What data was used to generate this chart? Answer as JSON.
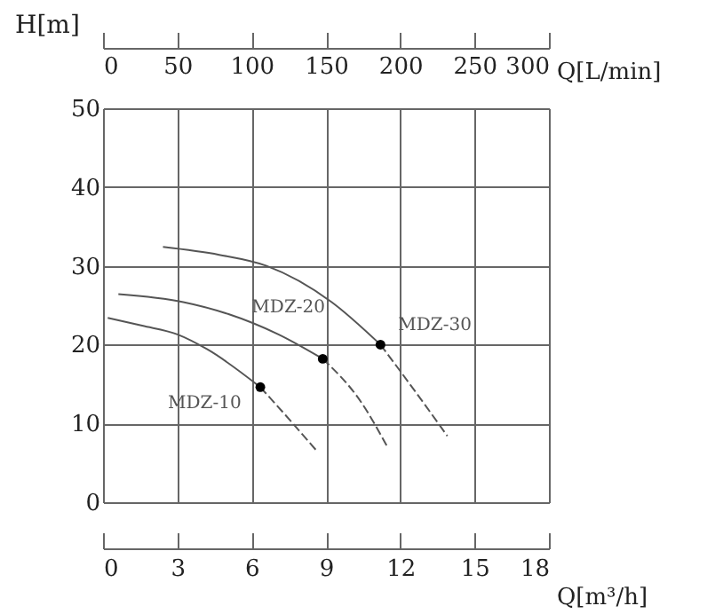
{
  "chart_data": {
    "type": "line",
    "xlabel": "Q[m³/h]",
    "ylabel": "H[m]",
    "x2label": "Q[L/min]",
    "xlim": [
      0,
      18
    ],
    "xticks": [
      0,
      3,
      6,
      9,
      12,
      15,
      18
    ],
    "x2lim": [
      0,
      300
    ],
    "x2ticks": [
      0,
      50,
      100,
      150,
      200,
      250,
      300
    ],
    "ylim": [
      0,
      50
    ],
    "yticks": [
      0,
      10,
      20,
      30,
      40,
      50
    ],
    "grid": true,
    "series": [
      {
        "name": "MDZ-10",
        "color": "#555555",
        "line_style": "solid",
        "x": [
          0.19,
          1.58,
          3.0,
          4.21,
          6.35
        ],
        "values": [
          23.4,
          22.4,
          21.3,
          19.4,
          14.6
        ]
      },
      {
        "color": "#555555",
        "line_style": "dashed",
        "x": [
          6.35,
          7.55,
          8.63
        ],
        "values": [
          14.6,
          10.4,
          6.5
        ]
      },
      {
        "name": "MDZ-20",
        "color": "#555555",
        "line_style": "solid",
        "x": [
          0.62,
          3.24,
          5.04,
          7.08,
          8.87
        ],
        "values": [
          26.4,
          25.4,
          23.9,
          21.3,
          18.2
        ]
      },
      {
        "color": "#555555",
        "line_style": "dashed",
        "x": [
          8.87,
          10.42,
          11.5
        ],
        "values": [
          18.2,
          12.7,
          6.9
        ]
      },
      {
        "name": "MDZ-30",
        "color": "#555555",
        "line_style": "solid",
        "x": [
          2.42,
          4.69,
          6.6,
          9.23,
          11.2
        ],
        "values": [
          32.4,
          31.4,
          30.0,
          25.4,
          20.0
        ]
      },
      {
        "color": "#555555",
        "line_style": "dashed",
        "x": [
          11.2,
          12.57,
          13.9
        ],
        "values": [
          20.0,
          14.2,
          8.4
        ]
      },
      {
        "type": "scatter",
        "color": "#000000",
        "marker": "circle",
        "x": [
          6.35,
          8.87,
          11.2
        ],
        "values": [
          14.6,
          18.2,
          20.0
        ]
      }
    ]
  }
}
